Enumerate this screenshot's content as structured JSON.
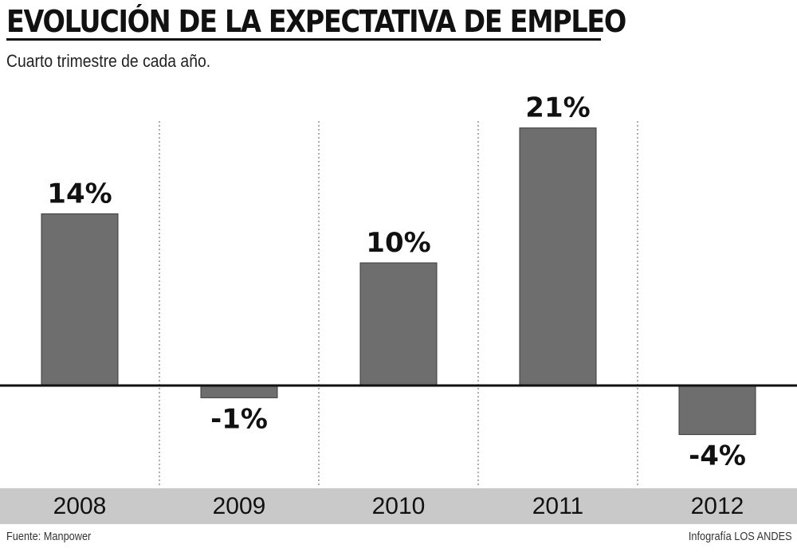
{
  "title": "EVOLUCIÓN DE LA EXPECTATIVA DE EMPLEO",
  "subtitle": "Cuarto trimestre de cada año.",
  "source": "Fuente: Manpower",
  "credit": "Infografía LOS ANDES",
  "colors": {
    "bar": "#6e6e6e",
    "bar_edge": "#3a3a3a",
    "axis": "#111111",
    "band": "#c9c9c9",
    "divider": "#888888"
  },
  "chart_data": {
    "type": "bar",
    "title": "EVOLUCIÓN DE LA EXPECTATIVA DE EMPLEO",
    "subtitle": "Cuarto trimestre de cada año.",
    "categories": [
      "2008",
      "2009",
      "2010",
      "2011",
      "2012"
    ],
    "values": [
      14,
      -1,
      10,
      21,
      -4
    ],
    "data_labels": [
      "14%",
      "-1%",
      "10%",
      "21%",
      "-4%"
    ],
    "unit": "%",
    "xlabel": "",
    "ylabel": "",
    "grid": false,
    "legend": "none"
  }
}
